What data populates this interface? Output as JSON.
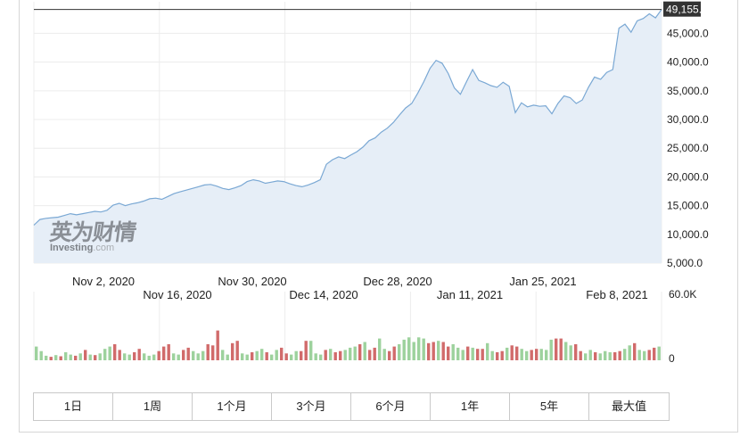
{
  "chart_data": {
    "type": "area",
    "price_panel": {
      "x_labels_upper": [
        "Nov 2, 2020",
        "Nov 30, 2020",
        "Dec 28, 2020",
        "Jan 25, 2021"
      ],
      "x_labels_lower": [
        "Nov 16, 2020",
        "Dec 14, 2020",
        "Jan 11, 2021",
        "Feb 8, 2021"
      ],
      "y_ticks": [
        5000,
        10000,
        15000,
        20000,
        25000,
        30000,
        35000,
        40000,
        45000
      ],
      "y_tick_labels": [
        "5,000.0",
        "10,000.0",
        "15,000.0",
        "20,000.0",
        "25,000.0",
        "30,000.0",
        "35,000.0",
        "40,000.0",
        "45,000.0"
      ],
      "ylim": [
        5000,
        50500
      ],
      "current_value": 49155,
      "current_label": "49,155.0",
      "values": [
        11600,
        12600,
        12800,
        12900,
        13000,
        13300,
        13600,
        13400,
        13600,
        13800,
        14000,
        13900,
        14200,
        15100,
        15400,
        15000,
        15300,
        15500,
        15800,
        16200,
        16300,
        16100,
        16600,
        17100,
        17400,
        17700,
        18000,
        18300,
        18600,
        18700,
        18400,
        18000,
        17800,
        18100,
        18500,
        19200,
        19500,
        19300,
        18900,
        19100,
        19300,
        19200,
        18800,
        18500,
        18300,
        18600,
        19000,
        19500,
        22200,
        23000,
        23500,
        23200,
        23800,
        24400,
        25200,
        26300,
        26800,
        27800,
        28500,
        29500,
        30800,
        32000,
        32800,
        34600,
        36600,
        38900,
        40300,
        39800,
        38000,
        35500,
        34400,
        36600,
        38700,
        36800,
        36400,
        35900,
        35600,
        36500,
        35800,
        31200,
        32900,
        32200,
        32500,
        32300,
        32400,
        31000,
        32800,
        34100,
        33800,
        32800,
        33400,
        35600,
        37400,
        37000,
        38200,
        38700,
        45900,
        46600,
        45200,
        47200,
        47600,
        48400,
        47700,
        49155
      ],
      "grid": true,
      "watermark": {
        "cn": "英为财情",
        "en": "Investing",
        "en_suffix": ".com"
      }
    },
    "volume_panel": {
      "type": "bar",
      "y_tick_labels": [
        "60.0K",
        "0"
      ],
      "ylim": [
        0,
        60000
      ],
      "values": [
        12000,
        8000,
        4000,
        3000,
        4500,
        3500,
        7000,
        5000,
        4000,
        6000,
        9000,
        5000,
        4500,
        6000,
        10000,
        12000,
        14000,
        9000,
        6000,
        5000,
        7000,
        10000,
        6000,
        4000,
        5000,
        8000,
        12000,
        14000,
        6000,
        5000,
        9000,
        11000,
        8000,
        6000,
        8000,
        14000,
        13000,
        26000,
        9000,
        5000,
        15000,
        17000,
        6000,
        5000,
        7000,
        8000,
        10000,
        7000,
        5000,
        9000,
        11000,
        6000,
        5000,
        8000,
        8000,
        17000,
        17000,
        6000,
        5000,
        9000,
        10000,
        7000,
        8000,
        9000,
        11000,
        12000,
        14000,
        16000,
        9000,
        11000,
        19000,
        10000,
        8000,
        12000,
        14000,
        18000,
        20000,
        16000,
        20000,
        19000,
        15000,
        16000,
        17000,
        16000,
        12000,
        14000,
        11000,
        9000,
        12000,
        11000,
        10000,
        10000,
        15000,
        8000,
        7000,
        8000,
        11000,
        13000,
        12000,
        10000,
        8000,
        9000,
        10000,
        10000,
        9000,
        18000,
        19000,
        19000,
        16000,
        13000,
        14000,
        8000,
        6000,
        9000,
        7000,
        6000,
        8000,
        7000,
        7000,
        8000,
        10000,
        13000,
        15000,
        9000,
        8000,
        9000,
        11000,
        12000
      ],
      "up": [
        1,
        1,
        1,
        0,
        1,
        0,
        1,
        1,
        0,
        1,
        0,
        1,
        0,
        1,
        1,
        1,
        0,
        0,
        1,
        1,
        0,
        0,
        1,
        1,
        1,
        0,
        0,
        0,
        1,
        1,
        0,
        0,
        1,
        1,
        1,
        0,
        0,
        0,
        1,
        1,
        0,
        0,
        1,
        1,
        0,
        1,
        1,
        0,
        1,
        1,
        0,
        0,
        1,
        1,
        0,
        0,
        1,
        1,
        1,
        0,
        1,
        0,
        0,
        1,
        1,
        1,
        0,
        1,
        0,
        0,
        1,
        1,
        0,
        0,
        1,
        1,
        1,
        1,
        1,
        1,
        0,
        0,
        1,
        0,
        0,
        1,
        1,
        1,
        0,
        1,
        0,
        0,
        1,
        1,
        0,
        0,
        1,
        0,
        0,
        1,
        1,
        0,
        0,
        1,
        1,
        1,
        0,
        0,
        1,
        1,
        0,
        0,
        1,
        1,
        0,
        1,
        1,
        1,
        0,
        0,
        1,
        1,
        0,
        1,
        1,
        0,
        0,
        1
      ],
      "up_color": "#9dd29d",
      "down_color": "#d16b6b"
    },
    "colors": {
      "line": "#7aa8d4",
      "fill": "#e6eef7",
      "grid": "#ececec",
      "current_box": "#333333"
    }
  },
  "range_tabs": [
    "1日",
    "1周",
    "1个月",
    "3个月",
    "6个月",
    "1年",
    "5年",
    "最大值"
  ]
}
